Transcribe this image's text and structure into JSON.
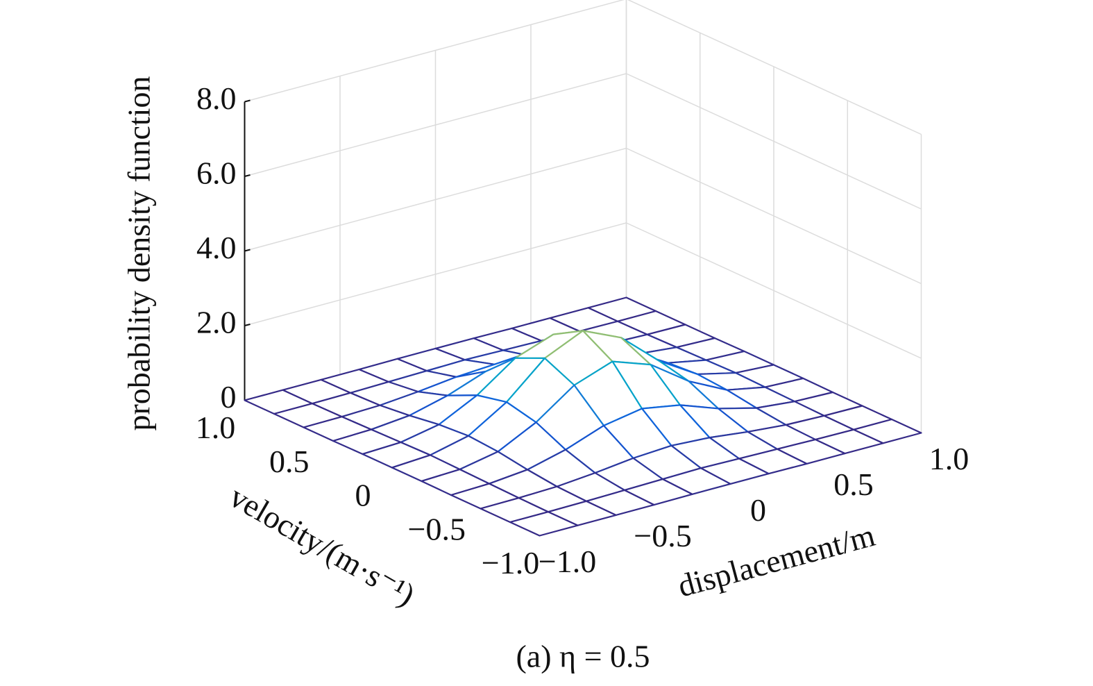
{
  "chart_data": {
    "type": "surface",
    "caption": "(a) η = 0.5",
    "xlabel": "displacement/m",
    "ylabel": "velocity/(m·s⁻¹)",
    "zlabel": "probability density function",
    "x": [
      -1.0,
      -0.8,
      -0.6,
      -0.4,
      -0.2,
      0,
      0.2,
      0.4,
      0.6,
      0.8,
      1.0
    ],
    "y": [
      -1.0,
      -0.8,
      -0.6,
      -0.4,
      -0.2,
      0,
      0.2,
      0.4,
      0.6,
      0.8,
      1.0
    ],
    "z": [
      [
        0,
        0,
        0,
        0,
        0.01,
        0.01,
        0.01,
        0,
        0,
        0,
        0
      ],
      [
        0,
        0,
        0.01,
        0.03,
        0.05,
        0.07,
        0.05,
        0.03,
        0.01,
        0,
        0
      ],
      [
        0,
        0.01,
        0.04,
        0.13,
        0.25,
        0.31,
        0.25,
        0.13,
        0.04,
        0.01,
        0
      ],
      [
        0,
        0.03,
        0.13,
        0.39,
        0.76,
        0.94,
        0.76,
        0.39,
        0.13,
        0.03,
        0
      ],
      [
        0.01,
        0.05,
        0.25,
        0.76,
        1.48,
        1.84,
        1.48,
        0.76,
        0.25,
        0.05,
        0.01
      ],
      [
        0.01,
        0.07,
        0.31,
        0.94,
        1.84,
        2.3,
        1.84,
        0.94,
        0.31,
        0.07,
        0.01
      ],
      [
        0.01,
        0.05,
        0.25,
        0.76,
        1.48,
        1.84,
        1.48,
        0.76,
        0.25,
        0.05,
        0.01
      ],
      [
        0,
        0.03,
        0.13,
        0.39,
        0.76,
        0.94,
        0.76,
        0.39,
        0.13,
        0.03,
        0
      ],
      [
        0,
        0.01,
        0.04,
        0.13,
        0.25,
        0.31,
        0.25,
        0.13,
        0.04,
        0.01,
        0
      ],
      [
        0,
        0,
        0.01,
        0.03,
        0.05,
        0.07,
        0.05,
        0.03,
        0.01,
        0,
        0
      ],
      [
        0,
        0,
        0,
        0,
        0.01,
        0.01,
        0.01,
        0,
        0,
        0,
        0
      ]
    ],
    "xlim": [
      -1,
      1
    ],
    "ylim": [
      -1,
      1
    ],
    "zlim": [
      0,
      8
    ],
    "xticks": [
      {
        "value": -1,
        "label": "−1.0"
      },
      {
        "value": -0.5,
        "label": "−0.5"
      },
      0,
      0.5,
      {
        "value": 1,
        "label": "1.0"
      }
    ],
    "yticks": [
      {
        "value": -1,
        "label": "−1.0"
      },
      {
        "value": -0.5,
        "label": "−0.5"
      },
      0,
      0.5,
      {
        "value": 1,
        "label": "1.0"
      }
    ],
    "zticks": [
      0,
      {
        "value": 2,
        "label": "2.0"
      },
      {
        "value": 4,
        "label": "4.0"
      },
      {
        "value": 6,
        "label": "6.0"
      },
      {
        "value": 8,
        "label": "8.0"
      }
    ],
    "grid": true,
    "colormap": "parula"
  }
}
